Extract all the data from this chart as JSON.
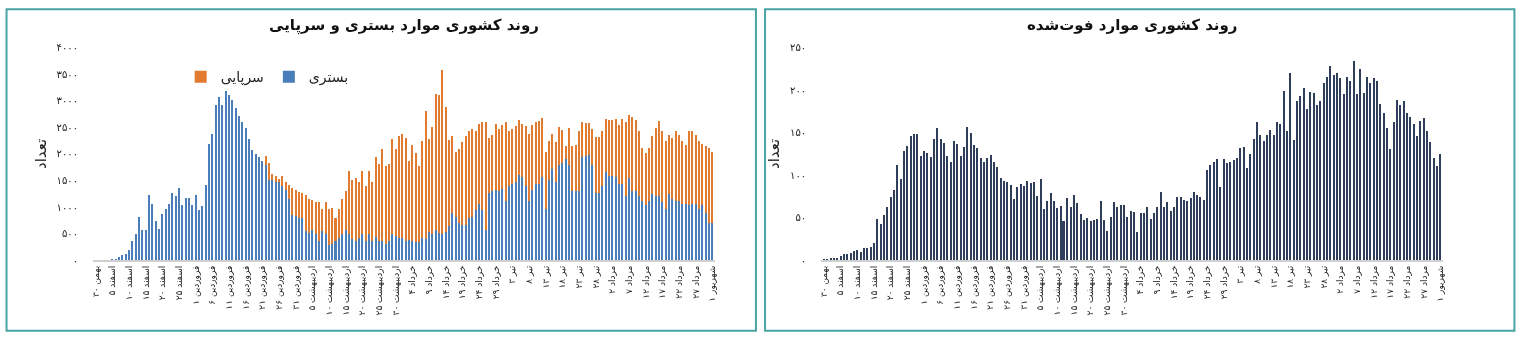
{
  "chart_data": [
    {
      "type": "bar",
      "stacked": true,
      "title": "روند کشوری موارد بستری و سرپایی",
      "ylabel": "تعداد",
      "legend": "top",
      "categories": [
        "۳۰ بهمن",
        null,
        null,
        null,
        null,
        "۵ اسفند",
        null,
        null,
        null,
        null,
        "۱۰ اسفند",
        null,
        null,
        null,
        null,
        "۱۵ اسفند",
        null,
        null,
        null,
        null,
        "۲۰ اسفند",
        null,
        null,
        null,
        null,
        "۲۵ اسفند",
        null,
        null,
        null,
        null,
        "۱ فروردین",
        null,
        null,
        null,
        null,
        "۶ فروردین",
        null,
        null,
        null,
        null,
        "۱۱ فروردین",
        null,
        null,
        null,
        null,
        "۱۶ فروردین",
        null,
        null,
        null,
        null,
        "۲۱ فروردین",
        null,
        null,
        null,
        null,
        "۲۶ فروردین",
        null,
        null,
        null,
        null,
        "۳۱ فروردین",
        null,
        null,
        null,
        null,
        "۵ اردیبهشت",
        null,
        null,
        null,
        null,
        "۱۰ اردیبهشت",
        null,
        null,
        null,
        null,
        "۱۵ اردیبهشت",
        null,
        null,
        null,
        null,
        "۲۰ اردیبهشت",
        null,
        null,
        null,
        null,
        "۲۵ اردیبهشت",
        null,
        null,
        null,
        null,
        "۳۰ اردیبهشت",
        null,
        null,
        null,
        null,
        "۴ خرداد",
        null,
        null,
        null,
        null,
        "۹ خرداد",
        null,
        null,
        null,
        null,
        "۱۴ خرداد",
        null,
        null,
        null,
        null,
        "۱۹ خرداد",
        null,
        null,
        null,
        null,
        "۲۴ خرداد",
        null,
        null,
        null,
        null,
        "۲۹ خرداد",
        null,
        null,
        null,
        null,
        "۳ تیر",
        null,
        null,
        null,
        null,
        "۸ تیر",
        null,
        null,
        null,
        null,
        "۱۳ تیر",
        null,
        null,
        null,
        null,
        "۱۸ تیر",
        null,
        null,
        null,
        null,
        "۲۳ تیر",
        null,
        null,
        null,
        null,
        "۲۸ تیر",
        null,
        null,
        null,
        null,
        "۲ مرداد",
        null,
        null,
        null,
        null,
        "۷ مرداد",
        null,
        null,
        null,
        null,
        "۱۲ مرداد",
        null,
        null,
        null,
        null,
        "۱۷ مرداد",
        null,
        null,
        null,
        null,
        "۲۲ مرداد",
        null,
        null,
        null,
        null,
        "۲۷ مرداد",
        null,
        null,
        null,
        null,
        "۱ شهریور"
      ],
      "series": [
        {
          "name": "بستری",
          "color": "#4a7ebb",
          "values": [
            0,
            0,
            0,
            5,
            10,
            20,
            20,
            60,
            90,
            120,
            190,
            360,
            500,
            820,
            575,
            575,
            1220,
            1060,
            730,
            580,
            870,
            970,
            1060,
            1270,
            1200,
            1350,
            1040,
            1170,
            1170,
            1040,
            1230,
            950,
            1020,
            1410,
            2190,
            2380,
            2920,
            3070,
            2920,
            3180,
            3110,
            3010,
            2870,
            2720,
            2610,
            2480,
            2280,
            2080,
            1990,
            1950,
            1860,
            1800,
            1515,
            1515,
            1480,
            1470,
            1400,
            1330,
            1150,
            850,
            840,
            790,
            790,
            545,
            515,
            560,
            485,
            365,
            545,
            485,
            290,
            300,
            365,
            425,
            500,
            575,
            485,
            405,
            365,
            425,
            485,
            365,
            485,
            365,
            435,
            365,
            365,
            300,
            365,
            485,
            455,
            425,
            425,
            365,
            375,
            365,
            335,
            350,
            425,
            395,
            535,
            485,
            575,
            515,
            485,
            535,
            635,
            880,
            820,
            700,
            665,
            665,
            790,
            820,
            940,
            1060,
            940,
            575,
            1270,
            1300,
            1330,
            1300,
            1345,
            1120,
            1390,
            1440,
            1470,
            1605,
            1575,
            1390,
            1120,
            1330,
            1440,
            1440,
            1575,
            970,
            1515,
            1725,
            1480,
            1785,
            1820,
            1910,
            1800,
            1300,
            1300,
            1300,
            1950,
            1970,
            1985,
            1800,
            1270,
            1270,
            1390,
            1665,
            1590,
            1590,
            1575,
            1425,
            1425,
            1210,
            1545,
            1300,
            1300,
            1210,
            1120,
            1030,
            1120,
            1240,
            1210,
            1210,
            1090,
            970,
            1240,
            1150,
            1120,
            1110,
            1050,
            1060,
            1030,
            1060,
            1060,
            970,
            1030,
            880,
            700,
            700
          ]
        },
        {
          "name": "سرپایی",
          "color": "#e07b30",
          "values": [
            0,
            0,
            0,
            0,
            0,
            0,
            0,
            0,
            0,
            0,
            0,
            0,
            0,
            0,
            0,
            0,
            0,
            0,
            0,
            0,
            0,
            0,
            0,
            0,
            0,
            0,
            0,
            0,
            0,
            0,
            0,
            0,
            0,
            0,
            0,
            0,
            0,
            0,
            0,
            0,
            0,
            0,
            0,
            0,
            0,
            0,
            0,
            0,
            0,
            0,
            0,
            170,
            315,
            105,
            110,
            60,
            190,
            150,
            260,
            510,
            490,
            490,
            480,
            675,
            635,
            570,
            605,
            735,
            425,
            605,
            680,
            680,
            425,
            545,
            650,
            725,
            1185,
            1110,
            1180,
            1055,
            1185,
            1025,
            1185,
            1105,
            1505,
            1445,
            1725,
            1470,
            1445,
            1800,
            1645,
            1905,
            1955,
            1935,
            1485,
            1805,
            1675,
            1425,
            1815,
            2415,
            1745,
            2030,
            2545,
            2595,
            3090,
            2345,
            1625,
            1465,
            1210,
            1390,
            1560,
            1680,
            1635,
            1645,
            1500,
            1495,
            1670,
            2020,
            1030,
            1065,
            1235,
            1175,
            1200,
            1475,
            1050,
            1025,
            1055,
            1030,
            980,
            1135,
            1260,
            1215,
            1170,
            1185,
            1105,
            1075,
            730,
            650,
            745,
            730,
            635,
            240,
            685,
            850,
            860,
            1125,
            660,
            605,
            590,
            675,
            1040,
            1050,
            1035,
            990,
            1045,
            1045,
            1080,
            1120,
            1240,
            1385,
            1180,
            1395,
            1335,
            1225,
            990,
            980,
            1000,
            1090,
            1275,
            1410,
            1335,
            1270,
            1125,
            1150,
            1315,
            1240,
            1195,
            1105,
            1405,
            1375,
            1305,
            1275,
            1150,
            1270,
            1420,
            1330
          ]
        }
      ],
      "ylim": [
        0,
        4000
      ],
      "yticks": [
        {
          "value": 0,
          "label": "۰"
        },
        {
          "value": 500,
          "label": "۵۰۰"
        },
        {
          "value": 1000,
          "label": "۱۰۰۰"
        },
        {
          "value": 1500,
          "label": "۱۵۰۰"
        },
        {
          "value": 2000,
          "label": "۲۰۰۰"
        },
        {
          "value": 2500,
          "label": "۲۵۰۰"
        },
        {
          "value": 3000,
          "label": "۳۰۰۰"
        },
        {
          "value": 3500,
          "label": "۳۵۰۰"
        },
        {
          "value": 4000,
          "label": "۴۰۰۰"
        }
      ]
    },
    {
      "type": "bar",
      "title": "روند کشوری موارد فوت‌شده",
      "ylabel": "تعداد",
      "categories": [
        "۳۰ بهمن",
        null,
        null,
        null,
        null,
        "۵ اسفند",
        null,
        null,
        null,
        null,
        "۱۰ اسفند",
        null,
        null,
        null,
        null,
        "۱۵ اسفند",
        null,
        null,
        null,
        null,
        "۲۰ اسفند",
        null,
        null,
        null,
        null,
        "۲۵ اسفند",
        null,
        null,
        null,
        null,
        "۱ فروردین",
        null,
        null,
        null,
        null,
        "۶ فروردین",
        null,
        null,
        null,
        null,
        "۱۱ فروردین",
        null,
        null,
        null,
        null,
        "۱۶ فروردین",
        null,
        null,
        null,
        null,
        "۲۱ فروردین",
        null,
        null,
        null,
        null,
        "۲۶ فروردین",
        null,
        null,
        null,
        null,
        "۳۱ فروردین",
        null,
        null,
        null,
        null,
        "۵ اردیبهشت",
        null,
        null,
        null,
        null,
        "۱۰ اردیبهشت",
        null,
        null,
        null,
        null,
        "۱۵ اردیبهشت",
        null,
        null,
        null,
        null,
        "۲۰ اردیبهشت",
        null,
        null,
        null,
        null,
        "۲۵ اردیبهشت",
        null,
        null,
        null,
        null,
        "۳۰ اردیبهشت",
        null,
        null,
        null,
        null,
        "۴ خرداد",
        null,
        null,
        null,
        null,
        "۹ خرداد",
        null,
        null,
        null,
        null,
        "۱۴ خرداد",
        null,
        null,
        null,
        null,
        "۱۹ خرداد",
        null,
        null,
        null,
        null,
        "۲۴ خرداد",
        null,
        null,
        null,
        null,
        "۲۹ خرداد",
        null,
        null,
        null,
        null,
        "۳ تیر",
        null,
        null,
        null,
        null,
        "۸ تیر",
        null,
        null,
        null,
        null,
        "۱۳ تیر",
        null,
        null,
        null,
        null,
        "۱۸ تیر",
        null,
        null,
        null,
        null,
        "۲۳ تیر",
        null,
        null,
        null,
        null,
        "۲۸ تیر",
        null,
        null,
        null,
        null,
        "۲ مرداد",
        null,
        null,
        null,
        null,
        "۷ مرداد",
        null,
        null,
        null,
        null,
        "۱۲ مرداد",
        null,
        null,
        null,
        null,
        "۱۷ مرداد",
        null,
        null,
        null,
        null,
        "۲۲ مرداد",
        null,
        null,
        null,
        null,
        "۲۷ مرداد",
        null,
        null,
        null,
        null,
        "۱ شهریور"
      ],
      "series": [
        {
          "color": "#2f3e5a",
          "values": [
            1,
            1,
            2,
            2,
            3,
            5,
            7,
            7,
            9,
            11,
            12,
            10,
            14,
            14,
            16,
            20,
            49,
            42,
            53,
            62,
            74,
            83,
            112,
            96,
            128,
            134,
            146,
            148,
            148,
            122,
            128,
            126,
            121,
            142,
            156,
            143,
            138,
            122,
            116,
            140,
            137,
            123,
            133,
            157,
            150,
            136,
            132,
            120,
            116,
            120,
            124,
            116,
            110,
            97,
            93,
            92,
            89,
            72,
            86,
            90,
            87,
            93,
            91,
            92,
            75,
            95,
            60,
            70,
            79,
            70,
            61,
            64,
            46,
            73,
            62,
            77,
            67,
            54,
            47,
            50,
            46,
            47,
            49,
            70,
            47,
            34,
            51,
            68,
            63,
            65,
            65,
            51,
            58,
            57,
            33,
            56,
            56,
            62,
            49,
            56,
            62,
            80,
            63,
            69,
            58,
            62,
            74,
            74,
            71,
            70,
            73,
            80,
            77,
            74,
            71,
            106,
            112,
            115,
            119,
            86,
            119,
            114,
            115,
            118,
            120,
            132,
            133,
            108,
            125,
            143,
            162,
            147,
            140,
            147,
            153,
            147,
            162,
            160,
            199,
            152,
            220,
            141,
            187,
            193,
            202,
            178,
            198,
            197,
            182,
            187,
            208,
            216,
            228,
            218,
            220,
            214,
            195,
            216,
            211,
            234,
            195,
            225,
            197,
            215,
            208,
            214,
            211,
            184,
            173,
            155,
            131,
            162,
            188,
            183,
            187,
            173,
            169,
            160,
            146,
            164,
            167,
            152,
            139,
            120,
            111,
            125
          ]
        }
      ],
      "ylim": [
        0,
        250
      ],
      "yticks": [
        {
          "value": 0,
          "label": "۰"
        },
        {
          "value": 50,
          "label": "۵۰"
        },
        {
          "value": 100,
          "label": "۱۰۰"
        },
        {
          "value": 150,
          "label": "۱۵۰"
        },
        {
          "value": 200,
          "label": "۲۰۰"
        },
        {
          "value": 250,
          "label": "۲۵۰"
        }
      ]
    }
  ]
}
